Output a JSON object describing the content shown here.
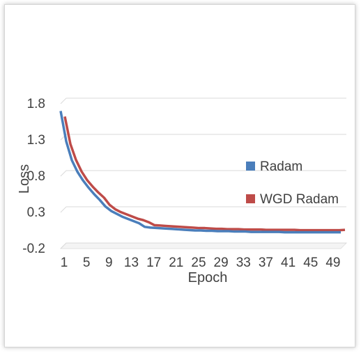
{
  "chart_data": {
    "type": "line",
    "title": "",
    "xlabel": "Epoch",
    "ylabel": "Loss",
    "ylim": [
      -0.2,
      1.8
    ],
    "yticks": [
      "1.8",
      "1.3",
      "0.8",
      "0.3",
      "-0.2"
    ],
    "xticks": [
      "1",
      "5",
      "9",
      "13",
      "17",
      "21",
      "25",
      "29",
      "33",
      "37",
      "41",
      "45",
      "49"
    ],
    "xrange": [
      1,
      51
    ],
    "grid": true,
    "legend_position": "right",
    "series": [
      {
        "name": "Radam",
        "color": "#4a7ebb",
        "values": [
          1.7,
          1.28,
          1.02,
          0.86,
          0.74,
          0.64,
          0.55,
          0.47,
          0.38,
          0.32,
          0.28,
          0.24,
          0.21,
          0.18,
          0.15,
          0.1,
          0.09,
          0.085,
          0.08,
          0.075,
          0.07,
          0.065,
          0.06,
          0.055,
          0.05,
          0.05,
          0.045,
          0.045,
          0.04,
          0.04,
          0.04,
          0.035,
          0.035,
          0.035,
          0.03,
          0.03,
          0.03,
          0.03,
          0.03,
          0.03,
          0.025,
          0.025,
          0.025,
          0.025,
          0.025,
          0.025,
          0.025,
          0.025,
          0.025,
          0.025,
          0.025
        ]
      },
      {
        "name": "WGD Radam",
        "color": "#be4b48",
        "values": [
          1.6,
          1.22,
          1.0,
          0.84,
          0.72,
          0.63,
          0.55,
          0.48,
          0.38,
          0.32,
          0.28,
          0.25,
          0.22,
          0.19,
          0.17,
          0.14,
          0.1,
          0.095,
          0.09,
          0.085,
          0.08,
          0.075,
          0.07,
          0.065,
          0.06,
          0.06,
          0.055,
          0.05,
          0.05,
          0.045,
          0.045,
          0.045,
          0.04,
          0.04,
          0.04,
          0.04,
          0.035,
          0.035,
          0.035,
          0.035,
          0.035,
          0.035,
          0.03,
          0.03,
          0.03,
          0.03,
          0.03,
          0.03,
          0.03,
          0.03,
          0.035
        ]
      }
    ]
  }
}
